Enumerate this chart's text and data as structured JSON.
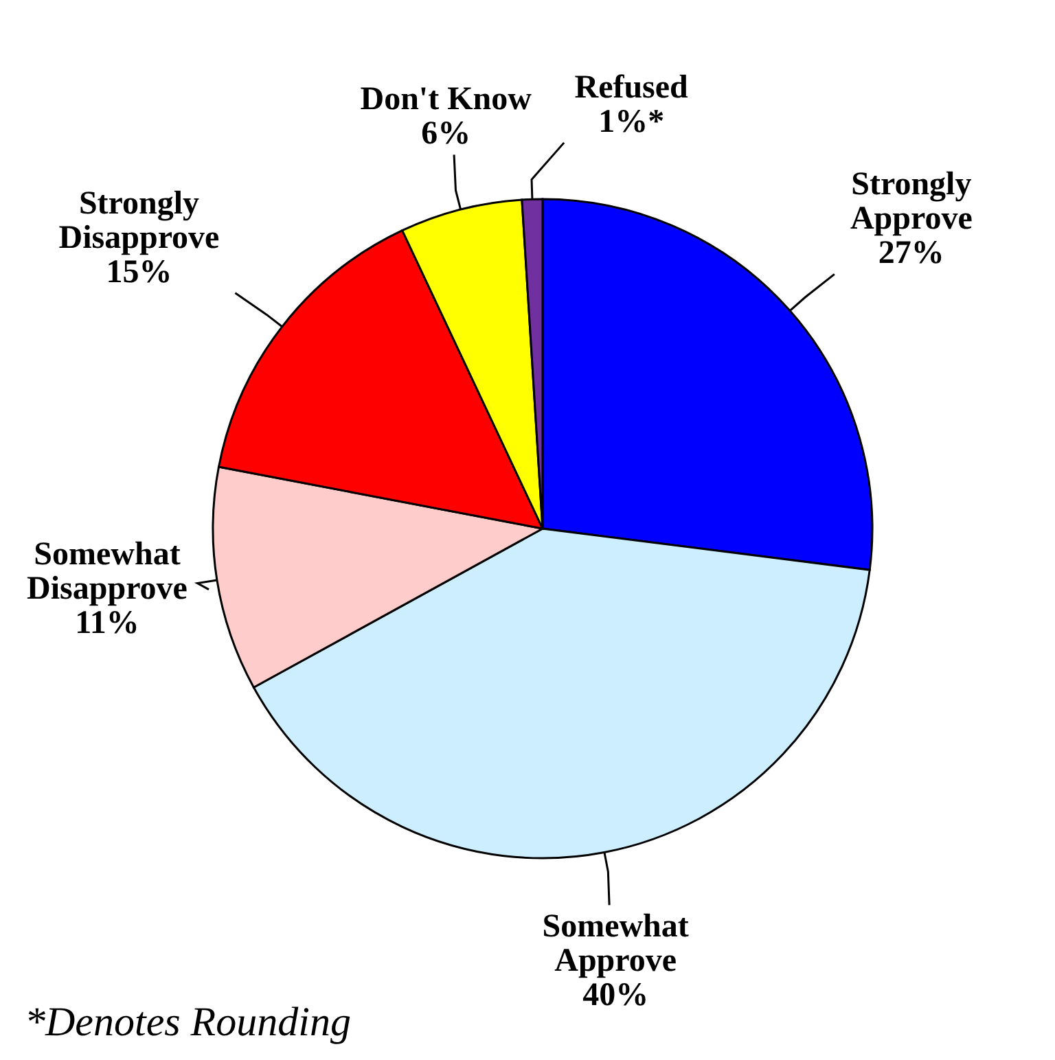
{
  "chart_data": {
    "type": "pie",
    "categories": [
      "Strongly Approve",
      "Somewhat Approve",
      "Somewhat Disapprove",
      "Strongly Disapprove",
      "Don't Know",
      "Refused"
    ],
    "values": [
      27,
      40,
      11,
      15,
      6,
      1
    ],
    "value_labels": [
      "27%",
      "40%",
      "11%",
      "15%",
      "6%",
      "1%*"
    ],
    "colors": [
      "#0000ff",
      "#cceeff",
      "#ffcccc",
      "#ff0000",
      "#ffff00",
      "#7030a0"
    ],
    "annotations": [
      "*Denotes Rounding"
    ]
  }
}
